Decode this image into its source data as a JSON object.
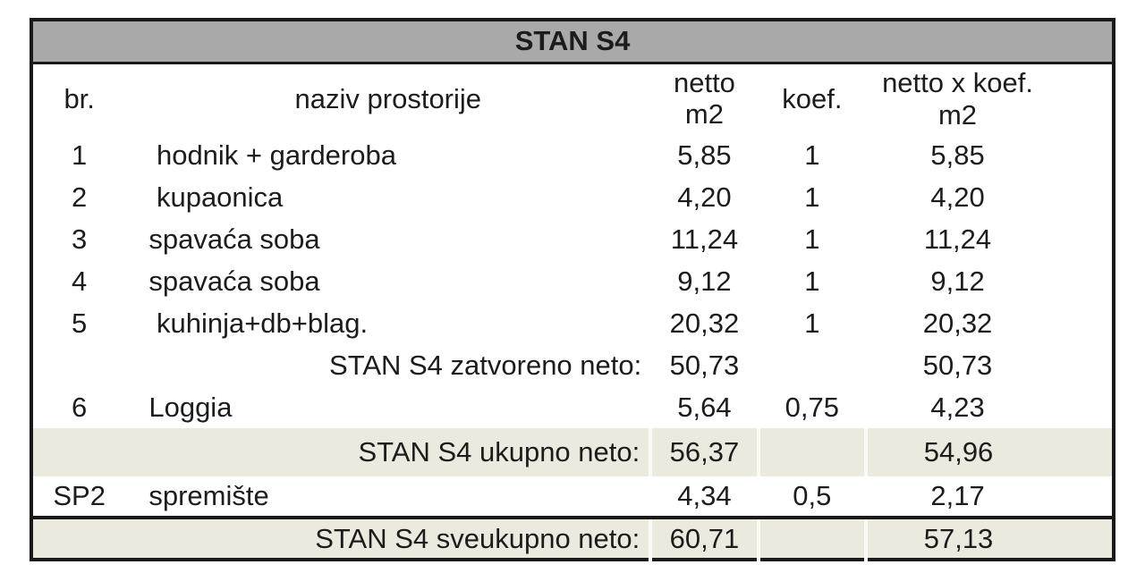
{
  "table_title": "STAN S4",
  "header": {
    "br": "br.",
    "naziv": "naziv prostorije",
    "netto_line1": "netto",
    "netto_line2": "m2",
    "koef": "koef.",
    "netto_x_koef": "netto x koef. m2"
  },
  "rows": [
    {
      "br": "1",
      "naziv": " hodnik + garderoba",
      "netto": "5,85",
      "koef": "1",
      "netto_x_koef": "5,85"
    },
    {
      "br": "2",
      "naziv": " kupaonica",
      "netto": "4,20",
      "koef": "1",
      "netto_x_koef": "4,20"
    },
    {
      "br": "3",
      "naziv": "spavaća soba",
      "netto": "11,24",
      "koef": "1",
      "netto_x_koef": "11,24"
    },
    {
      "br": "4",
      "naziv": "spavaća soba",
      "netto": "9,12",
      "koef": "1",
      "netto_x_koef": "9,12"
    },
    {
      "br": "5",
      "naziv": " kuhinja+db+blag.",
      "netto": "20,32",
      "koef": "1",
      "netto_x_koef": "20,32"
    },
    {
      "label": "STAN S4 zatvoreno neto:",
      "netto": "50,73",
      "koef": "",
      "netto_x_koef": "50,73"
    },
    {
      "br": "6",
      "naziv": "Loggia",
      "netto": "5,64",
      "koef": "0,75",
      "netto_x_koef": "4,23"
    },
    {
      "label": "STAN S4 ukupno neto:",
      "netto": "56,37",
      "koef": "",
      "netto_x_koef": "54,96"
    },
    {
      "br": "SP2",
      "naziv": "spremište",
      "netto": "4,34",
      "koef": "0,5",
      "netto_x_koef": "2,17"
    },
    {
      "label": "STAN S4 sveukupno neto:",
      "netto": "60,71",
      "koef": "",
      "netto_x_koef": "57,13"
    }
  ],
  "colors": {
    "title_bg": "#a9a9a9",
    "subtotal_bg": "#eceadf",
    "border": "#1a1a1a",
    "text": "#1c1c1c"
  }
}
